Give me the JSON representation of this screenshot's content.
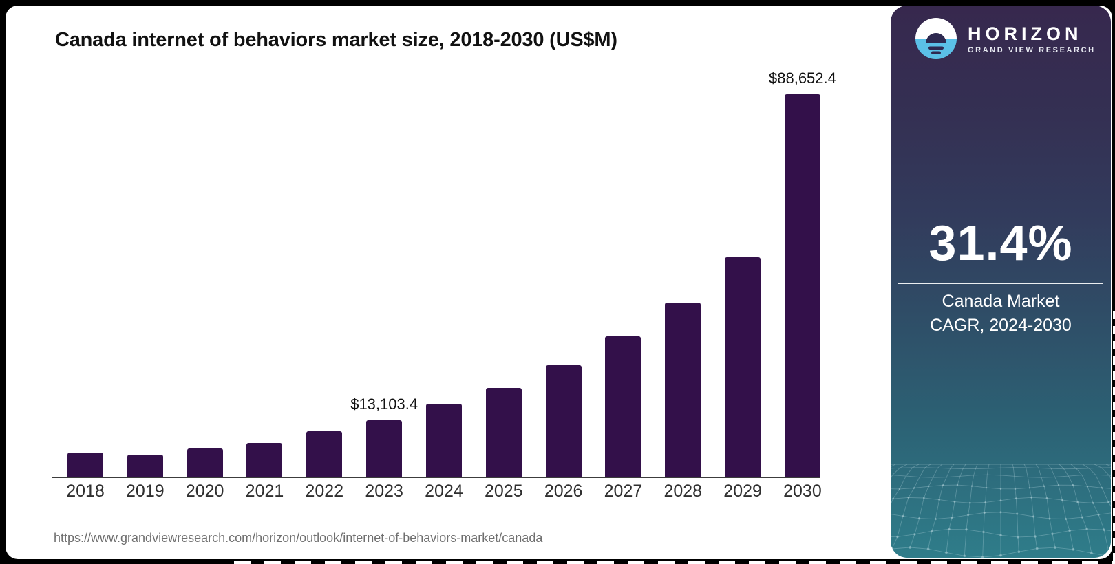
{
  "chart_data": {
    "type": "bar",
    "title": "Canada internet of behaviors market size, 2018-2030 (US$M)",
    "categories": [
      "2018",
      "2019",
      "2020",
      "2021",
      "2022",
      "2023",
      "2024",
      "2025",
      "2026",
      "2027",
      "2028",
      "2029",
      "2030"
    ],
    "values": [
      5530,
      5140,
      6500,
      7850,
      10570,
      13103.4,
      16900,
      20600,
      25800,
      32500,
      40300,
      50800,
      88652.4
    ],
    "unit": "US$M",
    "xlabel": "",
    "ylabel": "",
    "ylim": [
      0,
      90000
    ],
    "grid": false,
    "legend": "none",
    "bar_color": "#33104a",
    "data_labels": {
      "2023": "$13,103.4",
      "2030": "$88,652.4"
    }
  },
  "source": {
    "url": "https://www.grandviewresearch.com/horizon/outlook/internet-of-behaviors-market/canada"
  },
  "panel": {
    "brand": "HORIZON",
    "sub_brand": "GRAND VIEW RESEARCH",
    "cagr_value": "31.4%",
    "caption_line1": "Canada Market",
    "caption_line2": "CAGR, 2024-2030"
  },
  "colors": {
    "page_bg": "#000000",
    "card_bg": "#ffffff",
    "bar": "#33104a",
    "panel_gradient_top": "#37284e",
    "panel_gradient_bottom": "#2f7d8a",
    "logo_blue": "#5bc0e7",
    "logo_dark": "#2e2950"
  }
}
